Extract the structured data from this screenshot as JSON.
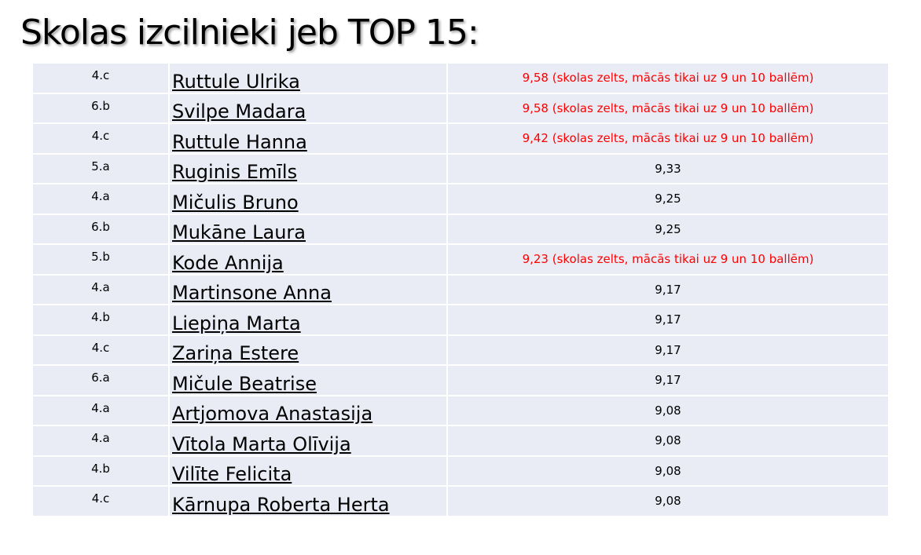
{
  "header": {
    "title": "Skolas izcilnieki jeb TOP 15:"
  },
  "table": {
    "highlight_color": "#ff0000",
    "rows": [
      [
        "4.c",
        "Ruttule Ulrika",
        "9,58 (skolas zelts, mācās tikai uz 9 un 10 ballēm)"
      ],
      [
        "6.b",
        "Svilpe Madara",
        "9,58 (skolas zelts, mācās tikai uz 9 un 10 ballēm)"
      ],
      [
        "4.c",
        "Ruttule Hanna",
        "9,42 (skolas zelts, mācās tikai uz 9 un 10 ballēm)"
      ],
      [
        "5.a",
        "Ruginis Emīls",
        "9,33"
      ],
      [
        "4.a",
        "Mičulis Bruno",
        "9,25"
      ],
      [
        "6.b",
        "Mukāne Laura",
        "9,25"
      ],
      [
        "5.b",
        "Kode Annija",
        "9,23 (skolas zelts, mācās tikai uz 9 un 10 ballēm)"
      ],
      [
        "4.a",
        "Martinsone Anna",
        "9,17"
      ],
      [
        "4.b",
        "Liepiņa Marta",
        "9,17"
      ],
      [
        "4.c",
        "Zariņa Estere",
        "9,17"
      ],
      [
        "6.a",
        "Mičule Beatrise",
        "9,17"
      ],
      [
        "4.a",
        "Artjomova Anastasija",
        "9,08"
      ],
      [
        "4.a",
        "Vītola Marta Olīvija",
        "9,08"
      ],
      [
        "4.b",
        "Vilīte Felicita",
        "9,08"
      ],
      [
        "4.c",
        "Kārnupa Roberta Herta",
        "9,08"
      ]
    ]
  }
}
